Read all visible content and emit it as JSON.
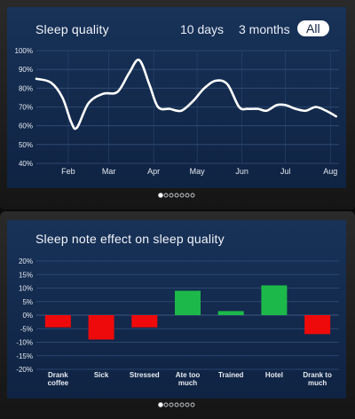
{
  "top_chart": {
    "title": "Sleep quality",
    "range_buttons": [
      "10 days",
      "3 months",
      "All"
    ],
    "selected_range": "All"
  },
  "bottom_chart": {
    "title": "Sleep note effect on sleep quality"
  },
  "pager": {
    "top_active_index": 0,
    "bottom_active_index": 0,
    "count": 7
  },
  "colors": {
    "background": "#0f2343",
    "line": "#ffffff",
    "positive": "#1db84a",
    "negative": "#ee0a0a"
  },
  "chart_data": [
    {
      "type": "line",
      "title": "Sleep quality",
      "x_tick_labels": [
        "Feb",
        "Mar",
        "Apr",
        "May",
        "Jun",
        "Jul",
        "Aug"
      ],
      "y_tick_labels": [
        "100%",
        "90%",
        "80%",
        "70%",
        "60%",
        "50%",
        "40%"
      ],
      "ylim": [
        40,
        100
      ],
      "grid": true,
      "x": [
        "2015-01-10",
        "2015-01-20",
        "2015-01-28",
        "2015-02-03",
        "2015-02-07",
        "2015-02-15",
        "2015-02-25",
        "2015-03-07",
        "2015-03-15",
        "2015-03-22",
        "2015-03-29",
        "2015-04-04",
        "2015-04-12",
        "2015-04-20",
        "2015-04-28",
        "2015-05-06",
        "2015-05-14",
        "2015-05-22",
        "2015-05-30",
        "2015-06-05",
        "2015-06-12",
        "2015-06-18",
        "2015-06-25",
        "2015-07-01",
        "2015-07-08",
        "2015-07-15",
        "2015-07-22",
        "2015-07-29",
        "2015-08-05"
      ],
      "y": [
        85,
        83,
        75,
        62,
        59,
        72,
        77,
        78,
        88,
        95,
        82,
        70,
        69,
        68,
        73,
        80,
        84,
        82,
        70,
        69,
        69,
        68,
        71,
        71,
        69,
        68,
        70,
        68,
        65
      ]
    },
    {
      "type": "bar",
      "title": "Sleep note effect on sleep quality",
      "categories": [
        "Drank coffee",
        "Sick",
        "Stressed",
        "Ate too much",
        "Trained",
        "Hotel",
        "Drank to much"
      ],
      "values": [
        -4.5,
        -9,
        -4.5,
        9,
        1.5,
        11,
        -7
      ],
      "y_tick_labels": [
        "20%",
        "15%",
        "10%",
        "5%",
        "0%",
        "-5%",
        "-10%",
        "-15%",
        "-20%"
      ],
      "ylim": [
        -20,
        20
      ],
      "grid": true
    }
  ]
}
